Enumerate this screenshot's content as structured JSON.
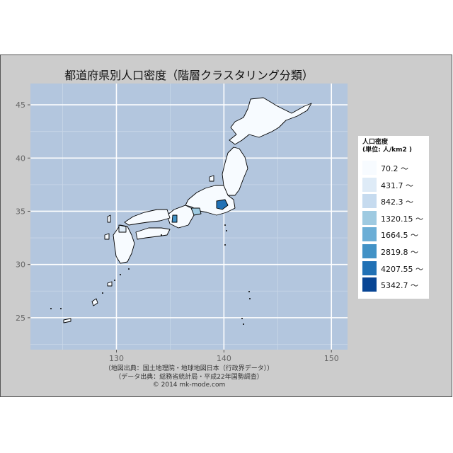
{
  "chart_data": {
    "type": "choropleth-map",
    "title": "都道府県別人口密度（階層クラスタリング分類）",
    "xlim": [
      122,
      151.5
    ],
    "ylim": [
      22,
      47
    ],
    "x_ticks": [
      130,
      140,
      150
    ],
    "y_ticks": [
      25,
      30,
      35,
      40,
      45
    ],
    "grid": true,
    "legend": {
      "title_line1": "人口密度",
      "title_line2": "(単位:  人/km2 )",
      "position": "right",
      "classes": [
        {
          "label": "70.2 〜",
          "color": "#f7fbff"
        },
        {
          "label": "431.7 〜",
          "color": "#deebf7"
        },
        {
          "label": "842.3 〜",
          "color": "#c6dbef"
        },
        {
          "label": "1320.15 〜",
          "color": "#9ecae1"
        },
        {
          "label": "1664.5 〜",
          "color": "#6baed6"
        },
        {
          "label": "2819.8 〜",
          "color": "#4292c6"
        },
        {
          "label": "4207.55 〜",
          "color": "#2171b5"
        },
        {
          "label": "5342.7 〜",
          "color": "#084594"
        }
      ]
    },
    "caption": [
      "（地図出典：国土地理院・地球地図日本（行政界データ））",
      "（データ出典：総務省統計局・平成22年国勢調査）",
      "© 2014 mk-mode.com"
    ]
  },
  "colors": {
    "panel": "#b3c6de",
    "grid_major": "#ffffff",
    "outline": "#000000"
  }
}
